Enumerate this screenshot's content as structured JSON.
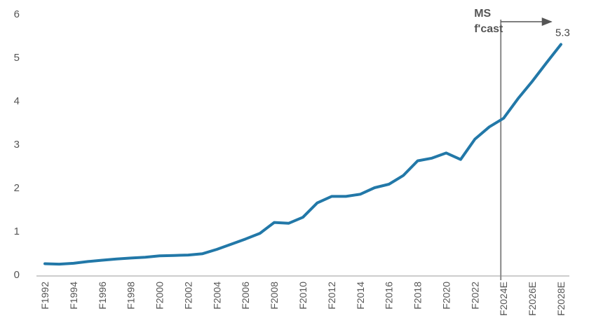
{
  "chart_data": {
    "type": "line",
    "title": "",
    "xlabel": "",
    "ylabel": "",
    "ylim": [
      0,
      6
    ],
    "yticks": [
      0,
      1,
      2,
      3,
      4,
      5,
      6
    ],
    "grid": false,
    "legend": "none",
    "line_color": "#2278a8",
    "x": [
      "F1992",
      "F1993",
      "F1994",
      "F1995",
      "F1996",
      "F1997",
      "F1998",
      "F1999",
      "F2000",
      "F2001",
      "F2002",
      "F2003",
      "F2004",
      "F2005",
      "F2006",
      "F2007",
      "F2008",
      "F2009",
      "F2010",
      "F2011",
      "F2012",
      "F2013",
      "F2014",
      "F2015",
      "F2016",
      "F2017",
      "F2018",
      "F2019",
      "F2020",
      "F2021",
      "F2022",
      "F2023",
      "F2024E",
      "F2025E",
      "F2026E",
      "F2027E",
      "F2028E"
    ],
    "x_tick_labels": [
      "F1992",
      "F1994",
      "F1996",
      "F1998",
      "F2000",
      "F2002",
      "F2004",
      "F2006",
      "F2008",
      "F2010",
      "F2012",
      "F2014",
      "F2016",
      "F2018",
      "F2020",
      "F2022",
      "F2024E",
      "F2026E",
      "F2028E"
    ],
    "series": [
      {
        "values": [
          0.25,
          0.24,
          0.26,
          0.3,
          0.33,
          0.36,
          0.38,
          0.4,
          0.43,
          0.44,
          0.45,
          0.48,
          0.58,
          0.7,
          0.82,
          0.95,
          1.2,
          1.18,
          1.32,
          1.65,
          1.8,
          1.8,
          1.85,
          2.0,
          2.08,
          2.28,
          2.62,
          2.68,
          2.8,
          2.65,
          3.12,
          3.4,
          3.6,
          4.05,
          4.45,
          4.88,
          5.3
        ]
      }
    ],
    "annotations": {
      "forecast_label_line1": "MS",
      "forecast_label_line2": "f'cast",
      "forecast_start": "F2024E",
      "end_label": "5.3"
    }
  }
}
